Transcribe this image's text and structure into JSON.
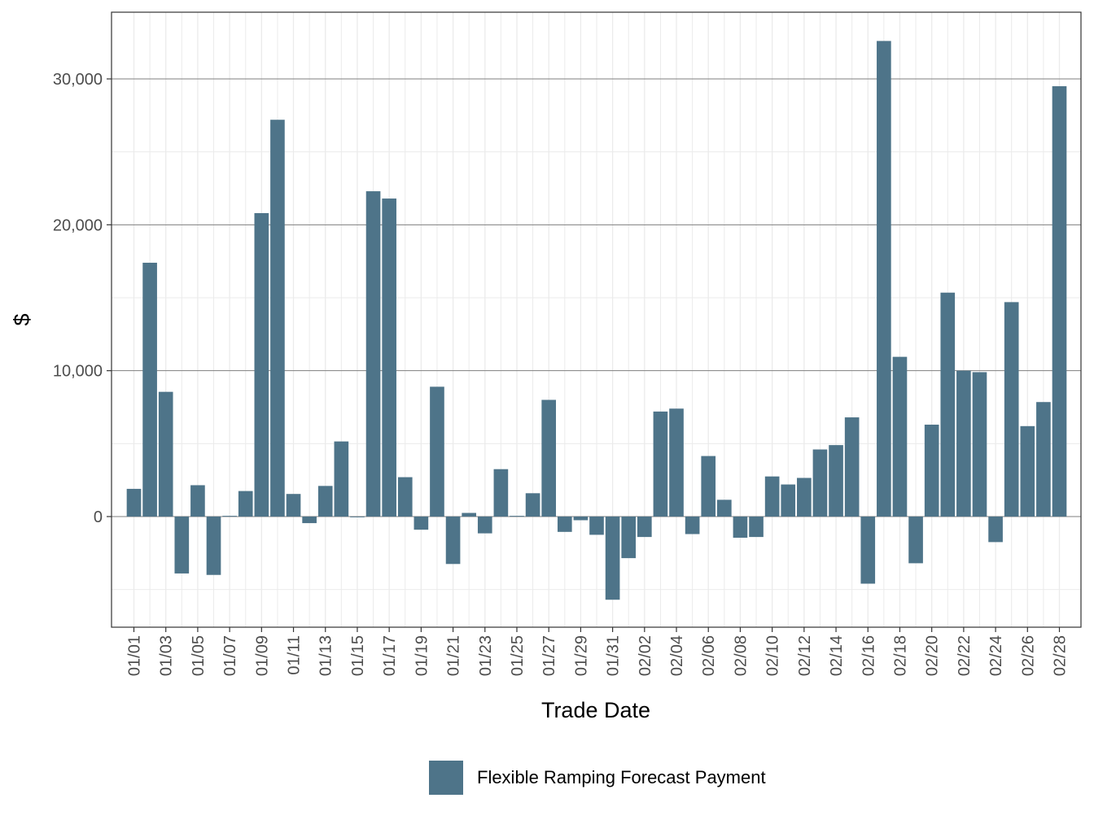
{
  "chart_data": {
    "type": "bar",
    "title": "",
    "xlabel": "Trade Date",
    "ylabel": "$",
    "ylim": [
      -7500,
      34000
    ],
    "y_ticks": [
      0,
      10000,
      20000,
      30000
    ],
    "y_tick_labels": [
      "0",
      "10,000",
      "20,000",
      "30,000"
    ],
    "grid": true,
    "legend_position": "bottom",
    "categories": [
      "01/01",
      "01/02",
      "01/03",
      "01/04",
      "01/05",
      "01/06",
      "01/07",
      "01/08",
      "01/09",
      "01/10",
      "01/11",
      "01/12",
      "01/13",
      "01/14",
      "01/15",
      "01/16",
      "01/17",
      "01/18",
      "01/19",
      "01/20",
      "01/21",
      "01/22",
      "01/23",
      "01/24",
      "01/25",
      "01/26",
      "01/27",
      "01/28",
      "01/29",
      "01/30",
      "01/31",
      "02/01",
      "02/02",
      "02/03",
      "02/04",
      "02/05",
      "02/06",
      "02/07",
      "02/08",
      "02/09",
      "02/10",
      "02/11",
      "02/12",
      "02/13",
      "02/14",
      "02/15",
      "02/16",
      "02/17",
      "02/18",
      "02/19",
      "02/20",
      "02/21",
      "02/22",
      "02/23",
      "02/24",
      "02/25",
      "02/26",
      "02/27",
      "02/28"
    ],
    "x_tick_labels": [
      "01/01",
      "01/03",
      "01/05",
      "01/07",
      "01/09",
      "01/11",
      "01/13",
      "01/15",
      "01/17",
      "01/19",
      "01/21",
      "01/23",
      "01/25",
      "01/27",
      "01/29",
      "01/31",
      "02/02",
      "02/04",
      "02/06",
      "02/08",
      "02/10",
      "02/12",
      "02/14",
      "02/16",
      "02/18",
      "02/20",
      "02/22",
      "02/24",
      "02/26",
      "02/28"
    ],
    "series": [
      {
        "name": "Flexible Ramping Forecast Payment",
        "color": "#4e7489",
        "values": [
          1900,
          17400,
          8550,
          -3900,
          2150,
          -4000,
          50,
          1750,
          20800,
          27200,
          1550,
          -450,
          2100,
          5150,
          -50,
          22300,
          21800,
          2700,
          -900,
          8900,
          -3250,
          250,
          -1150,
          3250,
          50,
          1600,
          8000,
          -1050,
          -250,
          -1250,
          -5700,
          -2850,
          -1400,
          7200,
          7400,
          -1200,
          4150,
          1150,
          -1450,
          -1400,
          2750,
          2200,
          2650,
          4600,
          4900,
          6800,
          -4600,
          32600,
          10950,
          -3200,
          6300,
          15350,
          10000,
          9900,
          -1750,
          14700,
          6200,
          7850,
          29500
        ]
      }
    ]
  }
}
